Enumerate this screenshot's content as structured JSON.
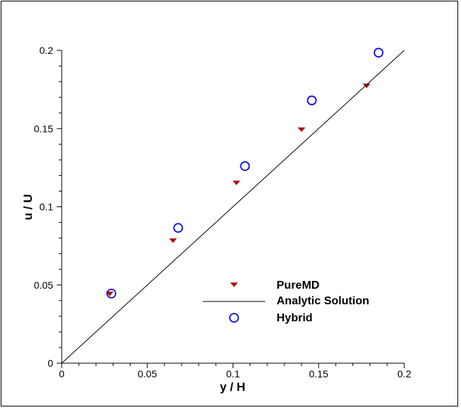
{
  "chart_data": {
    "type": "scatter",
    "title": "",
    "xlabel": "y / H",
    "ylabel": "u / U",
    "xlim": [
      0,
      0.2
    ],
    "ylim": [
      0,
      0.2
    ],
    "xticks": [
      0,
      0.05,
      0.1,
      0.15,
      0.2
    ],
    "yticks": [
      0,
      0.05,
      0.1,
      0.15,
      0.2
    ],
    "xtick_labels": [
      "0",
      "0.05",
      "0.1",
      "0.15",
      "0.2"
    ],
    "ytick_labels": [
      "0",
      "0.05",
      "0.1",
      "0.15",
      "0.2"
    ],
    "grid": false,
    "legend_position": "lower-right",
    "series": [
      {
        "name": "PureMD",
        "marker": "triangle-down",
        "color": "#b01010",
        "x": [
          0.028,
          0.065,
          0.102,
          0.14,
          0.178
        ],
        "y": [
          0.0445,
          0.0785,
          0.1155,
          0.1495,
          0.1775
        ]
      },
      {
        "name": "Analytic Solution",
        "marker": "line",
        "color": "#000000",
        "x": [
          0,
          0.2
        ],
        "y": [
          0,
          0.2
        ]
      },
      {
        "name": "Hybrid",
        "marker": "circle-open",
        "color": "#1010e0",
        "x": [
          0.029,
          0.068,
          0.107,
          0.146,
          0.185
        ],
        "y": [
          0.0445,
          0.0865,
          0.126,
          0.168,
          0.1985
        ]
      }
    ]
  }
}
